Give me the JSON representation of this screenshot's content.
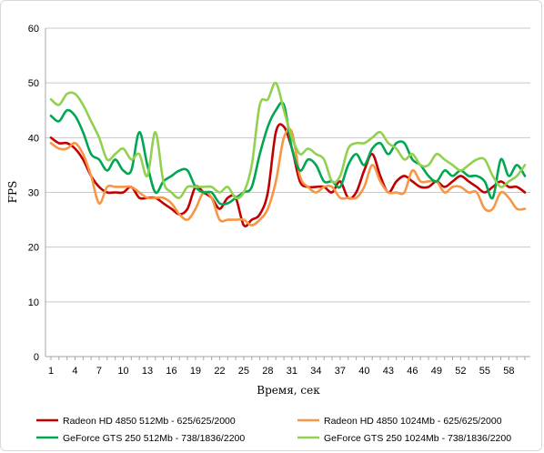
{
  "chart_data": {
    "type": "line",
    "title": "",
    "xlabel": "Время, сек",
    "ylabel": "FPS",
    "ylim": [
      0,
      60
    ],
    "yticks": [
      0,
      10,
      20,
      30,
      40,
      50,
      60
    ],
    "x": [
      1,
      2,
      3,
      4,
      5,
      6,
      7,
      8,
      9,
      10,
      11,
      12,
      13,
      14,
      15,
      16,
      17,
      18,
      19,
      20,
      21,
      22,
      23,
      24,
      25,
      26,
      27,
      28,
      29,
      30,
      31,
      32,
      33,
      34,
      35,
      36,
      37,
      38,
      39,
      40,
      41,
      42,
      43,
      44,
      45,
      46,
      47,
      48,
      49,
      50,
      51,
      52,
      53,
      54,
      55,
      56,
      57,
      58,
      59,
      60
    ],
    "xticks": [
      1,
      4,
      7,
      10,
      13,
      16,
      19,
      22,
      25,
      28,
      31,
      34,
      37,
      40,
      43,
      46,
      49,
      52,
      55,
      58
    ],
    "grid": true,
    "legend_position": "bottom",
    "series": [
      {
        "name": "Radeon HD 4850 512Mb - 625/625/2000",
        "color": "#c00000",
        "values": [
          40,
          39,
          39,
          38,
          36,
          33,
          31,
          30,
          30,
          30,
          31,
          29,
          29,
          29,
          28,
          27,
          26,
          27,
          31,
          30,
          29,
          27,
          29,
          29,
          24,
          25,
          26,
          30,
          41,
          42,
          38,
          32,
          31,
          31,
          31,
          30,
          32,
          29,
          30,
          34,
          37,
          33,
          30,
          32,
          33,
          32,
          31,
          31,
          32,
          31,
          32,
          33,
          32,
          31,
          30,
          31,
          32,
          31,
          31,
          30
        ]
      },
      {
        "name": "Radeon HD 4850 1024Mb - 625/625/2000",
        "color": "#f79646",
        "values": [
          39,
          38,
          38,
          39,
          37,
          33,
          28,
          31,
          31,
          31,
          31,
          30,
          29,
          29,
          29,
          28,
          26,
          25,
          27,
          30,
          29,
          25,
          25,
          25,
          25,
          24,
          25,
          27,
          32,
          40,
          41,
          33,
          31,
          30,
          31,
          31,
          29,
          29,
          29,
          31,
          35,
          32,
          30,
          30,
          30,
          34,
          32,
          32,
          32,
          30,
          31,
          31,
          30,
          30,
          27,
          27,
          30,
          29,
          27,
          27
        ]
      },
      {
        "name": "GeForce GTS 250 512Mb - 738/1836/2200",
        "color": "#00a651",
        "values": [
          44,
          43,
          45,
          44,
          41,
          37,
          36,
          34,
          36,
          34,
          34,
          41,
          35,
          30,
          32,
          33,
          34,
          34,
          31,
          30,
          30,
          28,
          28,
          29,
          30,
          31,
          37,
          42,
          45,
          46,
          38,
          34,
          36,
          35,
          32,
          32,
          31,
          35,
          37,
          35,
          38,
          39,
          37,
          39,
          39,
          36,
          35,
          33,
          32,
          34,
          33,
          34,
          33,
          33,
          32,
          29,
          36,
          33,
          35,
          33
        ]
      },
      {
        "name": "GeForce GTS 250 1024Mb - 738/1836/2200",
        "color": "#92d050",
        "values": [
          47,
          46,
          48,
          48,
          46,
          43,
          40,
          36,
          37,
          38,
          36,
          37,
          33,
          41,
          32,
          30,
          29,
          31,
          31,
          31,
          31,
          30,
          31,
          29,
          30,
          35,
          46,
          47,
          50,
          45,
          40,
          37,
          38,
          37,
          36,
          32,
          33,
          38,
          39,
          39,
          40,
          41,
          39,
          38,
          36,
          37,
          35,
          35,
          37,
          36,
          35,
          34,
          35,
          36,
          36,
          33,
          31,
          32,
          33,
          35
        ]
      }
    ]
  }
}
